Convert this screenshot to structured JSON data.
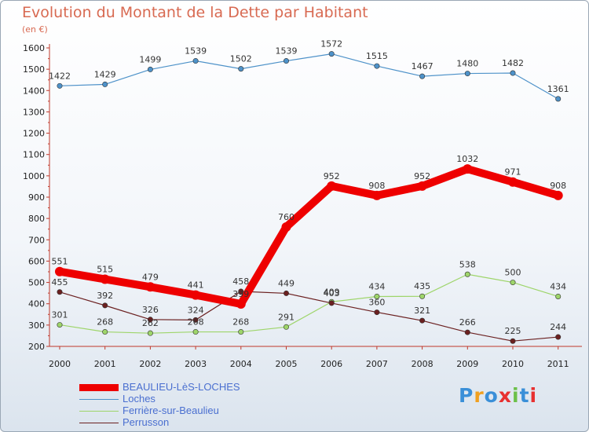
{
  "title": "Evolution du Montant de la Dette par Habitant",
  "subtitle": "(en €)",
  "logo": "Proxiti",
  "chart_data": {
    "type": "line",
    "title": "Evolution du Montant de la Dette par Habitant",
    "subtitle": "(en €)",
    "x": [
      "2000",
      "2001",
      "2002",
      "2003",
      "2004",
      "2005",
      "2006",
      "2007",
      "2008",
      "2009",
      "2010",
      "2011"
    ],
    "ylim": [
      200,
      1600
    ],
    "yticks": [
      200,
      300,
      400,
      500,
      600,
      700,
      800,
      900,
      1000,
      1100,
      1200,
      1300,
      1400,
      1500,
      1600
    ],
    "grid": false,
    "legend_position": "bottom-left",
    "series": [
      {
        "name": "BEAULIEU-LèS-LOCHES",
        "color": "#ee0000",
        "values": [
          551,
          515,
          479,
          441,
          399,
          760,
          952,
          908,
          952,
          1032,
          971,
          908
        ]
      },
      {
        "name": "Loches",
        "color": "#4e92c9",
        "values": [
          1422,
          1429,
          1499,
          1539,
          1502,
          1539,
          1572,
          1515,
          1467,
          1480,
          1482,
          1361
        ]
      },
      {
        "name": "Ferrière-sur-Beaulieu",
        "color": "#9ed56a",
        "values": [
          301,
          268,
          262,
          268,
          268,
          291,
          409,
          434,
          435,
          538,
          500,
          434
        ]
      },
      {
        "name": "Perrusson",
        "color": "#6b2020",
        "values": [
          455,
          392,
          326,
          324,
          458,
          449,
          403,
          360,
          321,
          266,
          225,
          244
        ]
      }
    ]
  }
}
